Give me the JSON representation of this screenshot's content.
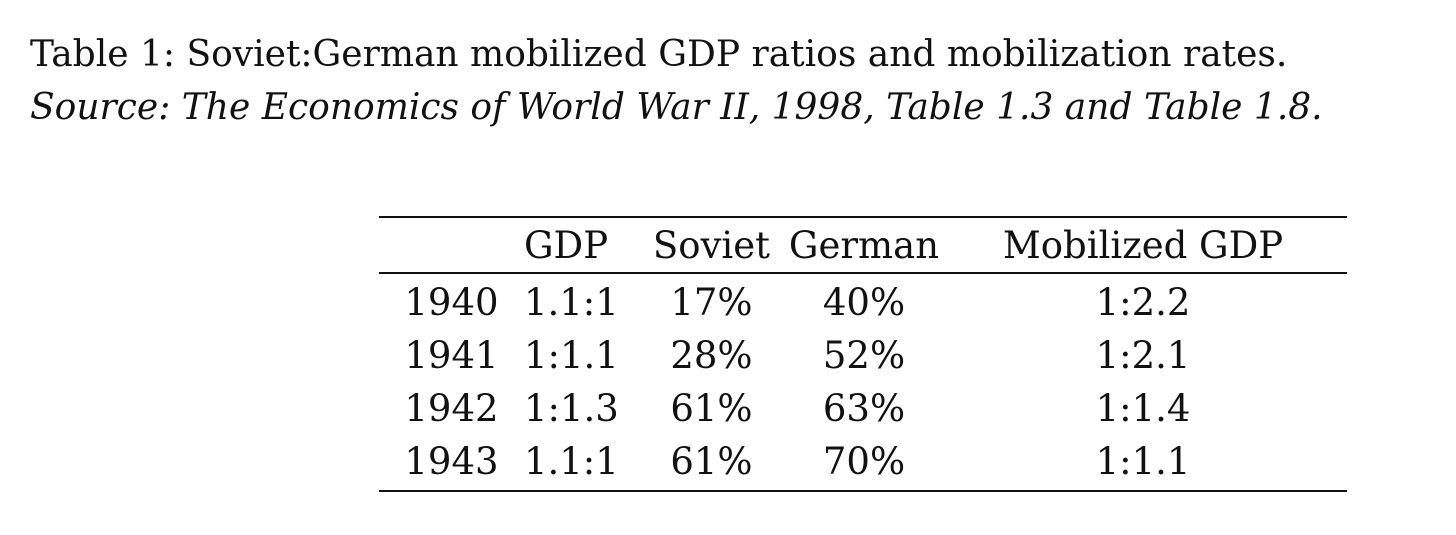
{
  "caption": {
    "title": "Table 1: Soviet:German mobilized GDP ratios and mobilization rates.",
    "source": "Source: The Economics of World War II, 1998, Table 1.3 and Table 1.8."
  },
  "table": {
    "headers": [
      "",
      "GDP",
      "Soviet",
      "German",
      "Mobilized GDP"
    ],
    "rows": [
      [
        "1940",
        "1.1:1",
        "17%",
        "40%",
        "1:2.2"
      ],
      [
        "1941",
        "1:1.1",
        "28%",
        "52%",
        "1:2.1"
      ],
      [
        "1942",
        "1:1.3",
        "61%",
        "63%",
        "1:1.4"
      ],
      [
        "1943",
        "1.1:1",
        "61%",
        "70%",
        "1:1.1"
      ]
    ]
  }
}
